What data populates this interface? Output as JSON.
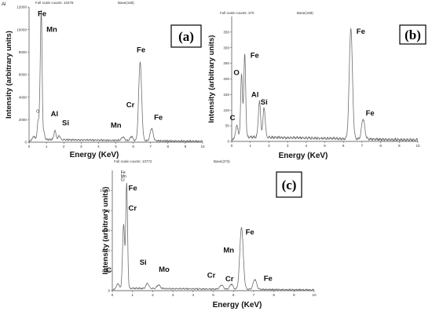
{
  "chart_data": [
    {
      "id": "a",
      "type": "line",
      "panel_label": "(a)",
      "corner_text": "Al",
      "full_scale_text": "Full scale counts: 10478",
      "base_text": "Base(168)",
      "xlabel": "Energy (KeV)",
      "ylabel": "Intensity (arbitrary units)",
      "xlim": [
        0,
        10
      ],
      "ylim": [
        0,
        12000
      ],
      "x_ticks": [
        0,
        1,
        2,
        3,
        4,
        5,
        6,
        7,
        8,
        9,
        10
      ],
      "y_ticks": [
        0,
        2000,
        4000,
        6000,
        8000,
        10000,
        12000
      ],
      "peaks": [
        {
          "x": 0.28,
          "y": 300,
          "w": 0.05
        },
        {
          "x": 0.52,
          "y": 1600,
          "w": 0.05
        },
        {
          "x": 0.64,
          "y": 3500,
          "w": 0.045
        },
        {
          "x": 0.71,
          "y": 10300,
          "w": 0.045
        },
        {
          "x": 0.85,
          "y": 700,
          "w": 0.05
        },
        {
          "x": 1.49,
          "y": 800,
          "w": 0.06
        },
        {
          "x": 1.74,
          "y": 350,
          "w": 0.06
        },
        {
          "x": 5.41,
          "y": 300,
          "w": 0.08
        },
        {
          "x": 5.9,
          "y": 350,
          "w": 0.08
        },
        {
          "x": 6.4,
          "y": 7000,
          "w": 0.085
        },
        {
          "x": 7.06,
          "y": 1100,
          "w": 0.085
        }
      ],
      "baseline": 250,
      "element_labels": [
        {
          "text": "Fe",
          "x": 0.5,
          "y": 11200
        },
        {
          "text": "Mn",
          "x": 1.0,
          "y": 9800
        },
        {
          "text": "O",
          "x": 0.42,
          "y": 2600,
          "small": true
        },
        {
          "text": "Al",
          "x": 1.25,
          "y": 2300
        },
        {
          "text": "Si",
          "x": 1.9,
          "y": 1500
        },
        {
          "text": "Cr",
          "x": 5.6,
          "y": 3100
        },
        {
          "text": "Mn",
          "x": 4.7,
          "y": 1300
        },
        {
          "text": "Fe",
          "x": 6.2,
          "y": 8000
        },
        {
          "text": "Fe",
          "x": 7.2,
          "y": 2000
        }
      ]
    },
    {
      "id": "b",
      "type": "line",
      "panel_label": "(b)",
      "full_scale_text": "Full scale counts: 370",
      "base_text": "Base(168)",
      "xlabel": "Energy (KeV)",
      "ylabel": "Intensity (arbitrary units)",
      "xlim": [
        0,
        10
      ],
      "ylim": [
        0,
        400
      ],
      "x_ticks": [
        0,
        1,
        2,
        3,
        4,
        5,
        6,
        7,
        8,
        9,
        10
      ],
      "y_ticks": [
        0,
        50,
        100,
        150,
        200,
        250,
        300,
        350
      ],
      "peaks": [
        {
          "x": 0.28,
          "y": 40,
          "w": 0.05
        },
        {
          "x": 0.53,
          "y": 200,
          "w": 0.05
        },
        {
          "x": 0.7,
          "y": 265,
          "w": 0.05
        },
        {
          "x": 1.49,
          "y": 115,
          "w": 0.06
        },
        {
          "x": 1.74,
          "y": 95,
          "w": 0.06
        },
        {
          "x": 6.4,
          "y": 355,
          "w": 0.085
        },
        {
          "x": 7.06,
          "y": 65,
          "w": 0.085
        }
      ],
      "baseline": 15,
      "element_labels": [
        {
          "text": "O",
          "x": 0.1,
          "y": 212
        },
        {
          "text": "Fe",
          "x": 1.0,
          "y": 268
        },
        {
          "text": "C",
          "x": -0.1,
          "y": 68
        },
        {
          "text": "Al",
          "x": 1.05,
          "y": 142
        },
        {
          "text": "Si",
          "x": 1.55,
          "y": 118
        },
        {
          "text": "Fe",
          "x": 6.7,
          "y": 345
        },
        {
          "text": "Fe",
          "x": 7.2,
          "y": 83
        }
      ]
    },
    {
      "id": "c",
      "type": "line",
      "panel_label": "(c)",
      "full_scale_text": "Full scale counts: 10772",
      "base_text": "Base(373)",
      "xlabel": "Energy (KeV)",
      "ylabel": "Intensity (arbitrary units)",
      "xlim": [
        0,
        10
      ],
      "ylim": [
        0,
        12000
      ],
      "x_ticks": [
        0,
        1,
        2,
        3,
        4,
        5,
        6,
        7,
        8,
        9,
        10
      ],
      "y_ticks": [
        0,
        2000,
        4000,
        6000,
        8000,
        10000
      ],
      "peaks": [
        {
          "x": 0.28,
          "y": 500,
          "w": 0.05
        },
        {
          "x": 0.53,
          "y": 3500,
          "w": 0.045
        },
        {
          "x": 0.58,
          "y": 4000,
          "w": 0.04
        },
        {
          "x": 0.71,
          "y": 10500,
          "w": 0.045
        },
        {
          "x": 1.74,
          "y": 500,
          "w": 0.07
        },
        {
          "x": 2.29,
          "y": 350,
          "w": 0.08
        },
        {
          "x": 5.41,
          "y": 400,
          "w": 0.08
        },
        {
          "x": 5.9,
          "y": 500,
          "w": 0.08
        },
        {
          "x": 6.4,
          "y": 6200,
          "w": 0.085
        },
        {
          "x": 7.06,
          "y": 1000,
          "w": 0.085
        }
      ],
      "baseline": 250,
      "element_labels": [
        {
          "text": "Fe",
          "x": 0.42,
          "y": 11700,
          "small": true
        },
        {
          "text": "Mn",
          "x": 0.42,
          "y": 11300,
          "small": true
        },
        {
          "text": "Cr",
          "x": 0.42,
          "y": 10950,
          "small": true
        },
        {
          "text": "Fe",
          "x": 0.8,
          "y": 10000
        },
        {
          "text": "Cr",
          "x": 0.8,
          "y": 8000
        },
        {
          "text": "C",
          "x": -0.3,
          "y": 1800
        },
        {
          "text": "Si",
          "x": 1.35,
          "y": 2600
        },
        {
          "text": "Mo",
          "x": 2.3,
          "y": 1900
        },
        {
          "text": "Cr",
          "x": 4.7,
          "y": 1300
        },
        {
          "text": "Cr",
          "x": 5.6,
          "y": 950
        },
        {
          "text": "Mn",
          "x": 5.5,
          "y": 3800
        },
        {
          "text": "Fe",
          "x": 6.6,
          "y": 5600
        },
        {
          "text": "Fe",
          "x": 7.5,
          "y": 1000
        }
      ]
    }
  ]
}
